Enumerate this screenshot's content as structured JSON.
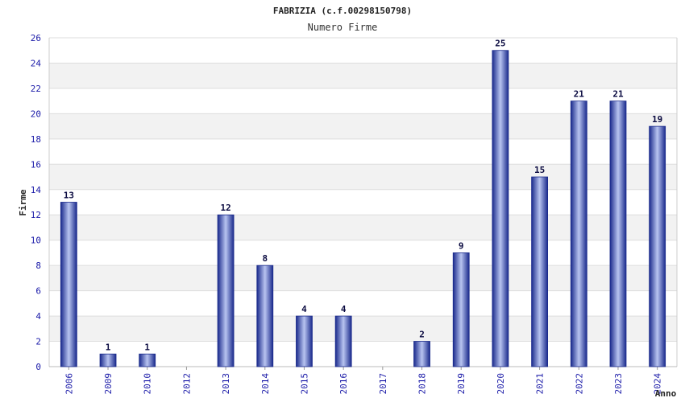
{
  "chart_data": {
    "type": "bar",
    "title": "FABRIZIA (c.f.00298150798)",
    "subtitle": "Numero Firme",
    "xlabel": "Anno",
    "ylabel": "Firme",
    "ylim": [
      0,
      26
    ],
    "ytick_step": 2,
    "yticks": [
      "0",
      "2",
      "4",
      "6",
      "8",
      "10",
      "12",
      "14",
      "16",
      "18",
      "20",
      "22",
      "24",
      "26"
    ],
    "categories": [
      "2006",
      "2009",
      "2010",
      "2012",
      "2013",
      "2014",
      "2015",
      "2016",
      "2017",
      "2018",
      "2019",
      "2020",
      "2021",
      "2022",
      "2023",
      "2024"
    ],
    "values": [
      13,
      1,
      1,
      0,
      12,
      8,
      4,
      4,
      0,
      2,
      9,
      25,
      15,
      21,
      21,
      19
    ],
    "data_labels": [
      "13",
      "1",
      "1",
      "",
      "12",
      "8",
      "4",
      "4",
      "",
      "2",
      "9",
      "25",
      "15",
      "21",
      "21",
      "19"
    ],
    "grid": true,
    "colors": {
      "bar_dark": "#1a2a8c",
      "bar_light": "#b8c4f0",
      "band": "#f2f2f2",
      "gridline": "#dddddd",
      "tick_text": "#1a1aa8"
    }
  }
}
